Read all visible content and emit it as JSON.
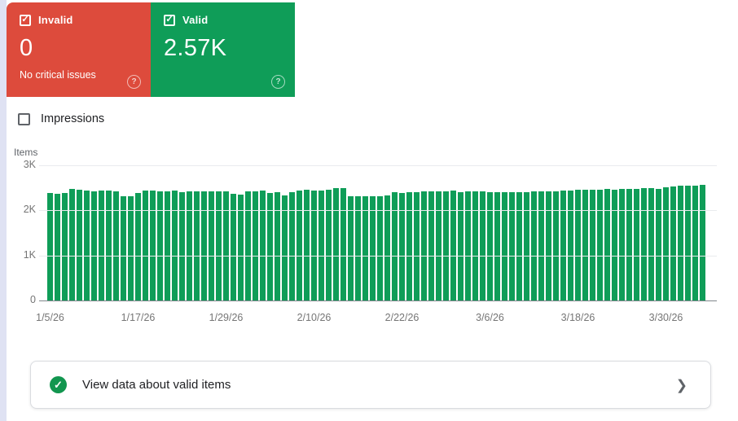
{
  "summary_cards": {
    "invalid": {
      "label": "Invalid",
      "checked": true,
      "checkmark": "✓",
      "count": "0",
      "subtitle": "No critical issues",
      "color": "#dd4b3c",
      "help_glyph": "?"
    },
    "valid": {
      "label": "Valid",
      "checked": true,
      "checkmark": "✓",
      "count": "2.57K",
      "color": "#0f9d58",
      "help_glyph": "?"
    }
  },
  "impressions_toggle": {
    "label": "Impressions",
    "checked": false
  },
  "chart_data": {
    "type": "bar",
    "title": "",
    "ylabel": "Items",
    "xlabel": "",
    "ylim": [
      0,
      3000
    ],
    "y_ticks": [
      {
        "label": "3K",
        "value": 3000
      },
      {
        "label": "2K",
        "value": 2000
      },
      {
        "label": "1K",
        "value": 1000
      },
      {
        "label": "0",
        "value": 0
      }
    ],
    "grid": "horizontal",
    "legend": "none",
    "bar_color": "#0f9d58",
    "start_date": "1/5/26",
    "end_date": "4/4/26",
    "x_tick_labels": [
      "1/5/26",
      "1/17/26",
      "1/29/26",
      "2/10/26",
      "2/22/26",
      "3/6/26",
      "3/18/26",
      "3/30/26"
    ],
    "x_tick_bar_indexes": [
      0,
      12,
      24,
      36,
      48,
      60,
      72,
      84
    ],
    "values": [
      2390,
      2365,
      2385,
      2480,
      2460,
      2435,
      2430,
      2440,
      2445,
      2430,
      2320,
      2305,
      2385,
      2435,
      2440,
      2430,
      2425,
      2445,
      2400,
      2430,
      2425,
      2430,
      2420,
      2430,
      2420,
      2360,
      2355,
      2430,
      2430,
      2435,
      2385,
      2395,
      2330,
      2410,
      2445,
      2450,
      2440,
      2445,
      2450,
      2495,
      2500,
      2320,
      2310,
      2305,
      2310,
      2320,
      2330,
      2395,
      2390,
      2400,
      2410,
      2420,
      2415,
      2425,
      2430,
      2440,
      2400,
      2415,
      2425,
      2430,
      2400,
      2395,
      2400,
      2395,
      2400,
      2405,
      2415,
      2420,
      2425,
      2430,
      2435,
      2440,
      2450,
      2455,
      2460,
      2465,
      2470,
      2465,
      2475,
      2480,
      2470,
      2490,
      2500,
      2480,
      2520,
      2530,
      2540,
      2555,
      2545,
      2570
    ]
  },
  "banner": {
    "text": "View data about valid items",
    "icon_color": "#12964f",
    "icon_glyph": "✓",
    "chevron_glyph": "❯"
  }
}
